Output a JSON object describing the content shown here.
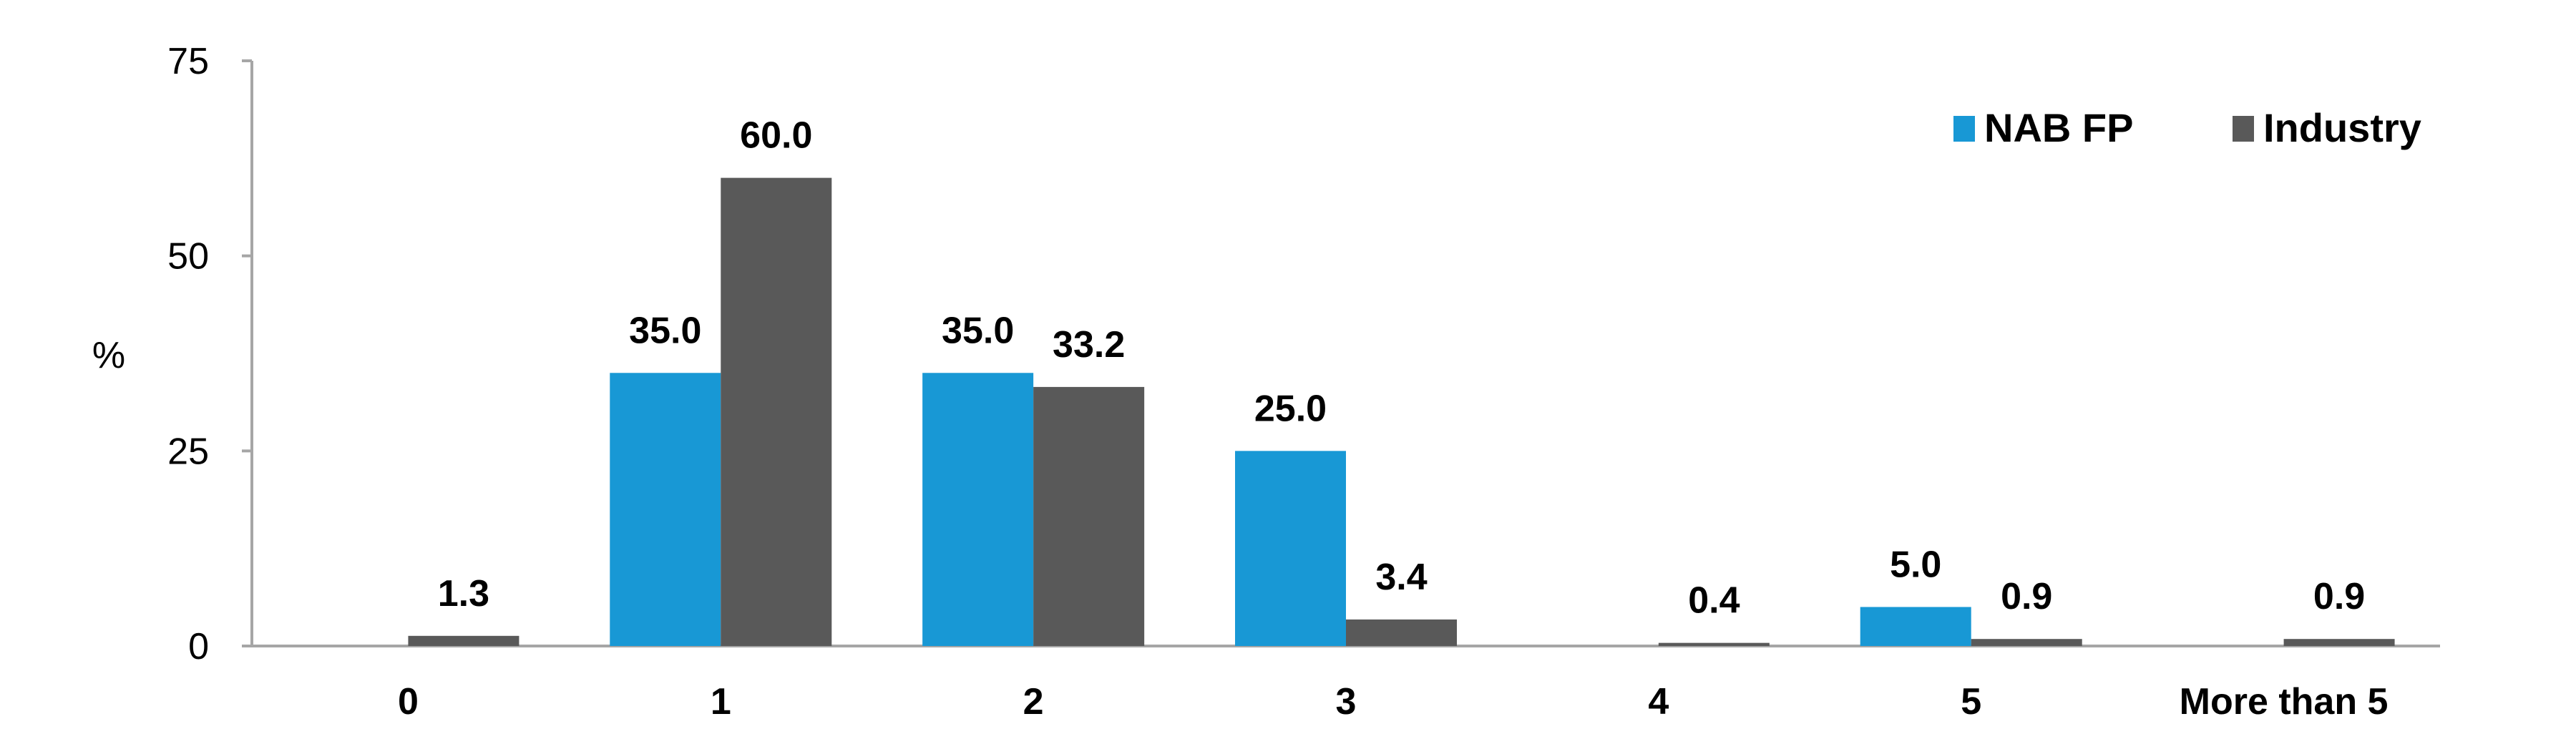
{
  "chart_data": {
    "type": "bar",
    "title": "",
    "xlabel": "",
    "ylabel": "%",
    "ylim": [
      0,
      75
    ],
    "yticks": [
      0,
      25,
      50,
      75
    ],
    "grid": false,
    "legend_position": "top-right",
    "categories": [
      "0",
      "1",
      "2",
      "3",
      "4",
      "5",
      "More than 5"
    ],
    "series": [
      {
        "name": "NAB FP",
        "color": "#1898d5",
        "values": [
          null,
          35.0,
          35.0,
          25.0,
          null,
          5.0,
          null
        ],
        "labels": [
          "",
          "35.0",
          "35.0",
          "25.0",
          "",
          "5.0",
          ""
        ]
      },
      {
        "name": "Industry",
        "color": "#595959",
        "values": [
          1.3,
          60.0,
          33.2,
          3.4,
          0.4,
          0.9,
          0.9
        ],
        "labels": [
          "1.3",
          "60.0",
          "33.2",
          "3.4",
          "0.4",
          "0.9",
          "0.9"
        ]
      }
    ]
  }
}
